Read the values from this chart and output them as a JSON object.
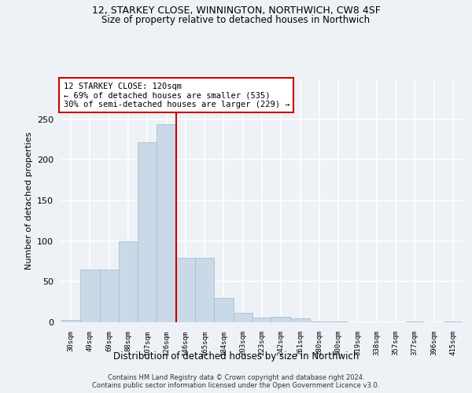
{
  "title1": "12, STARKEY CLOSE, WINNINGTON, NORTHWICH, CW8 4SF",
  "title2": "Size of property relative to detached houses in Northwich",
  "xlabel": "Distribution of detached houses by size in Northwich",
  "ylabel": "Number of detached properties",
  "footer1": "Contains HM Land Registry data © Crown copyright and database right 2024.",
  "footer2": "Contains public sector information licensed under the Open Government Licence v3.0.",
  "bar_color": "#c9d9e8",
  "bar_edge_color": "#a8bfd4",
  "vline_color": "#cc0000",
  "annotation_line1": "12 STARKEY CLOSE: 120sqm",
  "annotation_line2": "← 69% of detached houses are smaller (535)",
  "annotation_line3": "30% of semi-detached houses are larger (229) →",
  "annotation_box_color": "white",
  "annotation_box_edge": "#cc0000",
  "categories": [
    "30sqm",
    "49sqm",
    "69sqm",
    "88sqm",
    "107sqm",
    "126sqm",
    "146sqm",
    "165sqm",
    "184sqm",
    "203sqm",
    "223sqm",
    "242sqm",
    "261sqm",
    "280sqm",
    "300sqm",
    "319sqm",
    "338sqm",
    "357sqm",
    "377sqm",
    "396sqm",
    "415sqm"
  ],
  "values": [
    3,
    65,
    65,
    100,
    222,
    244,
    79,
    79,
    30,
    12,
    6,
    7,
    5,
    1,
    1,
    0,
    0,
    0,
    1,
    0,
    1
  ],
  "vline_pos": 5.5,
  "ylim": [
    0,
    300
  ],
  "yticks": [
    0,
    50,
    100,
    150,
    200,
    250
  ],
  "bg_color": "#eef2f7",
  "grid_color": "white"
}
